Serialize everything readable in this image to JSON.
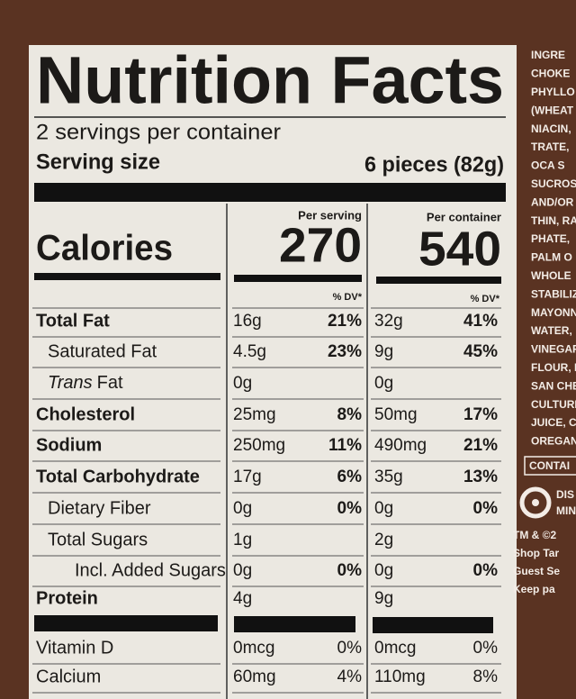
{
  "label": {
    "title": "Nutrition Facts",
    "servings": "2 servings per container",
    "serving_size_label": "Serving size",
    "serving_size_value": "6 pieces (82g)",
    "calories_label": "Calories",
    "per_serving": {
      "header": "Per serving",
      "calories": "270",
      "dv_header": "% DV*"
    },
    "per_container": {
      "header": "Per container",
      "calories": "540",
      "dv_header": "% DV*"
    },
    "rows": [
      {
        "label": "Total Fat",
        "bold": true,
        "indent": 0,
        "serving": "16g",
        "serving_dv": "21%",
        "container": "32g",
        "container_dv": "41%"
      },
      {
        "label": "Saturated Fat",
        "indent": 1,
        "serving": "4.5g",
        "serving_dv": "23%",
        "container": "9g",
        "container_dv": "45%"
      },
      {
        "label_italic": "Trans",
        "label": "Fat",
        "indent": 1,
        "serving": "0g",
        "container": "0g"
      },
      {
        "label": "Cholesterol",
        "bold": true,
        "indent": 0,
        "serving": "25mg",
        "serving_dv": "8%",
        "container": "50mg",
        "container_dv": "17%"
      },
      {
        "label": "Sodium",
        "bold": true,
        "indent": 0,
        "serving": "250mg",
        "serving_dv": "11%",
        "container": "490mg",
        "container_dv": "21%"
      },
      {
        "label": "Total Carbohydrate",
        "bold": true,
        "indent": 0,
        "serving": "17g",
        "serving_dv": "6%",
        "container": "35g",
        "container_dv": "13%"
      },
      {
        "label": "Dietary Fiber",
        "indent": 1,
        "serving": "0g",
        "serving_dv": "0%",
        "container": "0g",
        "container_dv": "0%"
      },
      {
        "label": "Total Sugars",
        "indent": 1,
        "serving": "1g",
        "container": "2g"
      },
      {
        "label": "Incl. Added Sugars",
        "indent": 2,
        "serving": "0g",
        "serving_dv": "0%",
        "container": "0g",
        "container_dv": "0%"
      },
      {
        "label": "Protein",
        "bold": true,
        "indent": 0,
        "serving": "4g",
        "container": "9g"
      }
    ],
    "vitamins": [
      {
        "label": "Vitamin D",
        "serving": "0mcg",
        "serving_dv": "0%",
        "container": "0mcg",
        "container_dv": "0%"
      },
      {
        "label": "Calcium",
        "serving": "60mg",
        "serving_dv": "4%",
        "container": "110mg",
        "container_dv": "8%"
      }
    ]
  },
  "side_panel": {
    "ingredients": [
      "INGRE",
      "CHOKE",
      "PHYLLO",
      "(WHEAT",
      "NIACIN,",
      "TRATE,",
      "OCA S",
      "SUCROS",
      "AND/OR",
      "THIN, RA",
      "PHATE,",
      "PALM O",
      "WHOLE",
      "STABILIZ",
      "MAYONN",
      "WATER,",
      "VINEGAR",
      "FLOUR, E",
      "SAN CHE",
      "CULTURE",
      "JUICE, C",
      "OREGANO"
    ],
    "contains": "CONTAI",
    "brand_lines": [
      "DIS",
      "MIN"
    ],
    "footer": [
      "TM & ©2",
      "Shop Tar",
      "Guest Se",
      "Keep pa"
    ]
  }
}
